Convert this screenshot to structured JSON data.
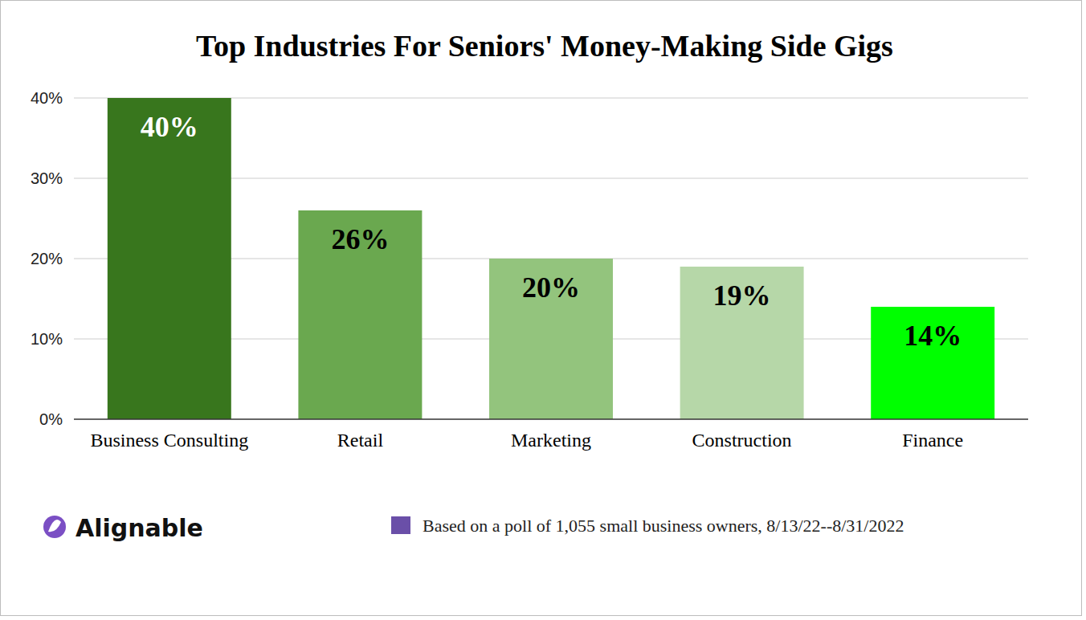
{
  "chart_data": {
    "type": "bar",
    "title": "Top Industries For Seniors' Money-Making Side Gigs",
    "categories": [
      "Business Consulting",
      "Retail",
      "Marketing",
      "Construction",
      "Finance"
    ],
    "values": [
      40,
      26,
      20,
      19,
      14
    ],
    "value_labels": [
      "40%",
      "26%",
      "20%",
      "19%",
      "14%"
    ],
    "colors": [
      "#38761d",
      "#6aa84f",
      "#93c47d",
      "#b6d7a8",
      "#00ff00"
    ],
    "ylim": [
      0,
      40
    ],
    "yticks": [
      {
        "value": 0,
        "label": "0%"
      },
      {
        "value": 10,
        "label": "10%"
      },
      {
        "value": 20,
        "label": "20%"
      },
      {
        "value": 30,
        "label": "30%"
      },
      {
        "value": 40,
        "label": "40%"
      }
    ],
    "grid": true,
    "data_labels": true,
    "annotations": [
      "Alignable",
      "Based on a poll of 1,055 small business owners, 8/13/22--8/31/2022"
    ]
  }
}
